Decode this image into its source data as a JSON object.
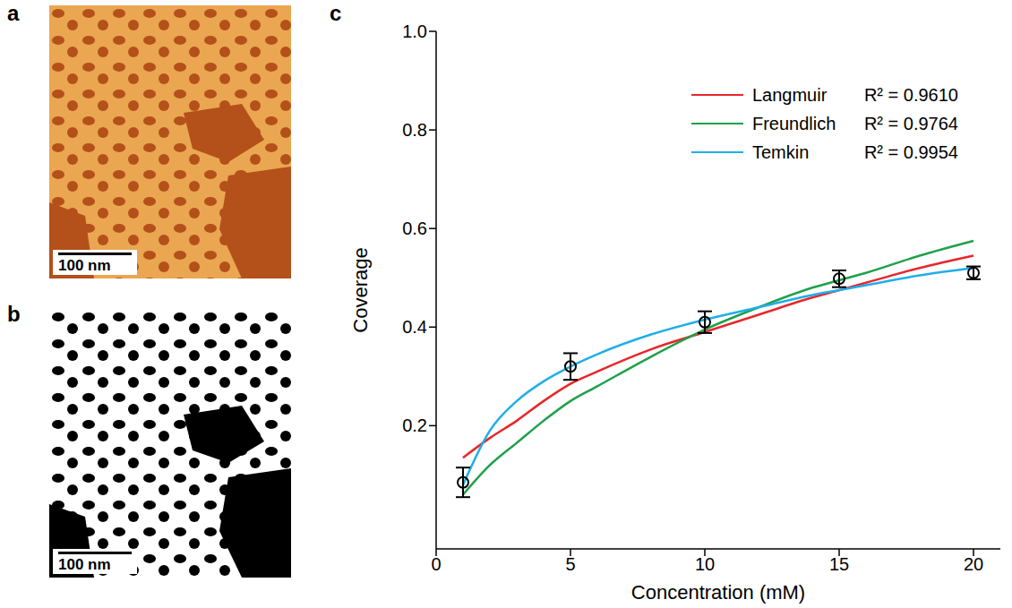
{
  "panel_labels": [
    "a",
    "b",
    "c"
  ],
  "images": [
    {
      "scale_bar": "100 nm"
    },
    {
      "scale_bar": "100 nm"
    }
  ],
  "chart_data": {
    "type": "scatter",
    "xlabel": "Concentration (mM)",
    "ylabel": "Coverage",
    "xlim": [
      0,
      21
    ],
    "ylim": [
      -0.05,
      1.0
    ],
    "xticks": [
      0,
      5,
      10,
      15,
      20
    ],
    "yticks": [
      0.2,
      0.4,
      0.6,
      0.8,
      {
        "value": 1.0,
        "label": "1.0"
      }
    ],
    "legend": "upper right",
    "grid": false,
    "points": {
      "x": [
        1,
        5,
        10,
        15,
        20
      ],
      "values": [
        0.085,
        0.32,
        0.41,
        0.498,
        0.51
      ],
      "error": [
        0.03,
        0.027,
        0.022,
        0.017,
        0.013
      ],
      "color": "#000000",
      "marker": "open circle"
    },
    "series": [
      {
        "name": "Langmuir",
        "annotation": "R² = 0.9610",
        "type": "line",
        "color": "#e8262a",
        "x": [
          1,
          2,
          3,
          4,
          5,
          6,
          8,
          10,
          12,
          14,
          15,
          16,
          18,
          20
        ],
        "values": [
          0.135,
          0.175,
          0.21,
          0.25,
          0.285,
          0.31,
          0.355,
          0.39,
          0.425,
          0.46,
          0.475,
          0.49,
          0.52,
          0.545
        ]
      },
      {
        "name": "Freundlich",
        "annotation": "R² = 0.9764",
        "type": "line",
        "color": "#1ea04a",
        "x": [
          1,
          2,
          3,
          4,
          5,
          6,
          8,
          10,
          12,
          14,
          15,
          16,
          18,
          20
        ],
        "values": [
          0.06,
          0.12,
          0.165,
          0.21,
          0.25,
          0.28,
          0.34,
          0.395,
          0.44,
          0.48,
          0.495,
          0.51,
          0.545,
          0.575
        ]
      },
      {
        "name": "Temkin",
        "annotation": "R² = 0.9954",
        "type": "line",
        "color": "#1eaee8",
        "x": [
          1,
          2,
          3,
          4,
          5,
          6,
          8,
          10,
          12,
          14,
          15,
          16,
          18,
          20
        ],
        "values": [
          0.08,
          0.19,
          0.25,
          0.29,
          0.32,
          0.345,
          0.385,
          0.415,
          0.44,
          0.465,
          0.475,
          0.485,
          0.505,
          0.52
        ]
      }
    ]
  }
}
